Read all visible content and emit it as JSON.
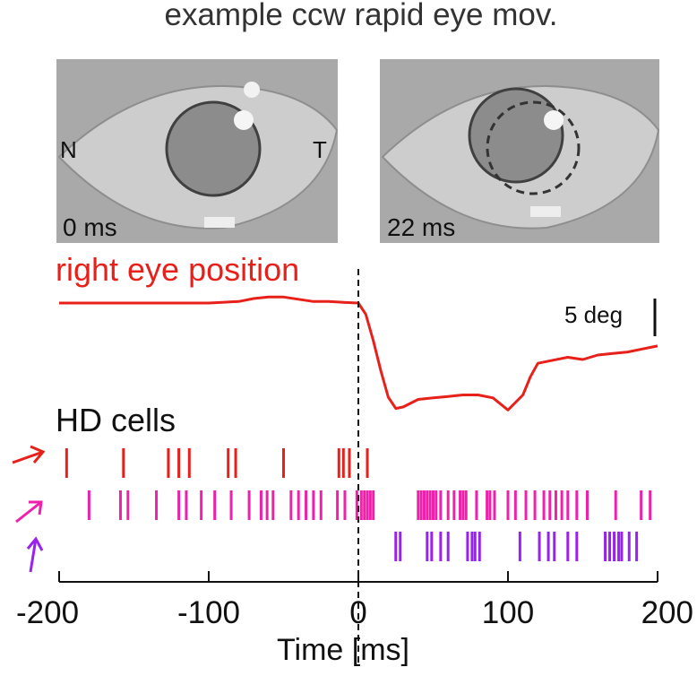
{
  "title": "example ccw rapid eye mov.",
  "colors": {
    "eye_trace": "#e8201a",
    "cell_1": "#e8201a",
    "cell_2": "#ee22aa",
    "cell_3": "#9922ee",
    "axis": "#111111",
    "eye_bg": "#a8a8a8",
    "sclera": "#c9c9c9",
    "pupil": "#8a8a8a"
  },
  "frames": [
    {
      "time_label": "0 ms",
      "nasal_label": "N",
      "temporal_label": "T"
    },
    {
      "time_label": "22 ms"
    }
  ],
  "scale_bar": {
    "label": "5 deg",
    "value_deg": 5
  },
  "hd_label": "HD cells",
  "chart_data": {
    "type": "line",
    "title": "example ccw rapid eye mov.",
    "xlabel": "Time [ms]",
    "xlim": [
      -200,
      200
    ],
    "xticks": [
      -200,
      -100,
      0,
      100,
      200
    ],
    "xtick_labels": [
      "-200",
      "-100",
      "0",
      "100",
      "200"
    ],
    "event_line_x": 0,
    "eye_position": {
      "name": "right eye position",
      "x": [
        -200,
        -180,
        -160,
        -140,
        -120,
        -100,
        -80,
        -70,
        -60,
        -50,
        -40,
        -30,
        -20,
        -10,
        0,
        5,
        10,
        15,
        20,
        25,
        30,
        40,
        50,
        60,
        70,
        80,
        90,
        100,
        110,
        115,
        120,
        130,
        140,
        150,
        160,
        170,
        180,
        190,
        200
      ],
      "y": [
        0,
        0,
        0,
        0,
        0,
        0,
        0.2,
        0.6,
        0.8,
        0.8,
        0.5,
        0.2,
        0.2,
        0.1,
        0,
        -1.5,
        -5,
        -9,
        -12.5,
        -14,
        -13.8,
        -12.8,
        -12.6,
        -12.4,
        -12.2,
        -12.2,
        -12.6,
        -14.2,
        -12.2,
        -9.8,
        -8,
        -7.6,
        -7.2,
        -7.5,
        -6.9,
        -6.7,
        -6.5,
        -6.1,
        -5.7
      ],
      "units": "deg"
    },
    "hd_cells": [
      {
        "name": "cell 1",
        "spikes": [
          -195,
          -157,
          -127,
          -120,
          -113,
          -87,
          -82,
          -50,
          -13,
          -10,
          -6,
          6
        ]
      },
      {
        "name": "cell 2",
        "spikes": [
          -180,
          -159,
          -154,
          -135,
          -120,
          -115,
          -105,
          -96,
          -85,
          -73,
          -65,
          -61,
          -57,
          -45,
          -40,
          -35,
          -30,
          -25,
          -14,
          -9,
          -1,
          2,
          4,
          6,
          8,
          10,
          40,
          42,
          44,
          46,
          48,
          50,
          52,
          55,
          60,
          64,
          68,
          70,
          72,
          79,
          86,
          88,
          91,
          100,
          105,
          112,
          118,
          124,
          128,
          132,
          136,
          140,
          146,
          153,
          172,
          189,
          195
        ]
      },
      {
        "name": "cell 3",
        "spikes": [
          25,
          28,
          46,
          49,
          55,
          60,
          73,
          76,
          78,
          81,
          108,
          121,
          127,
          131,
          140,
          146,
          165,
          168,
          171,
          174,
          176,
          181,
          186
        ]
      }
    ]
  }
}
